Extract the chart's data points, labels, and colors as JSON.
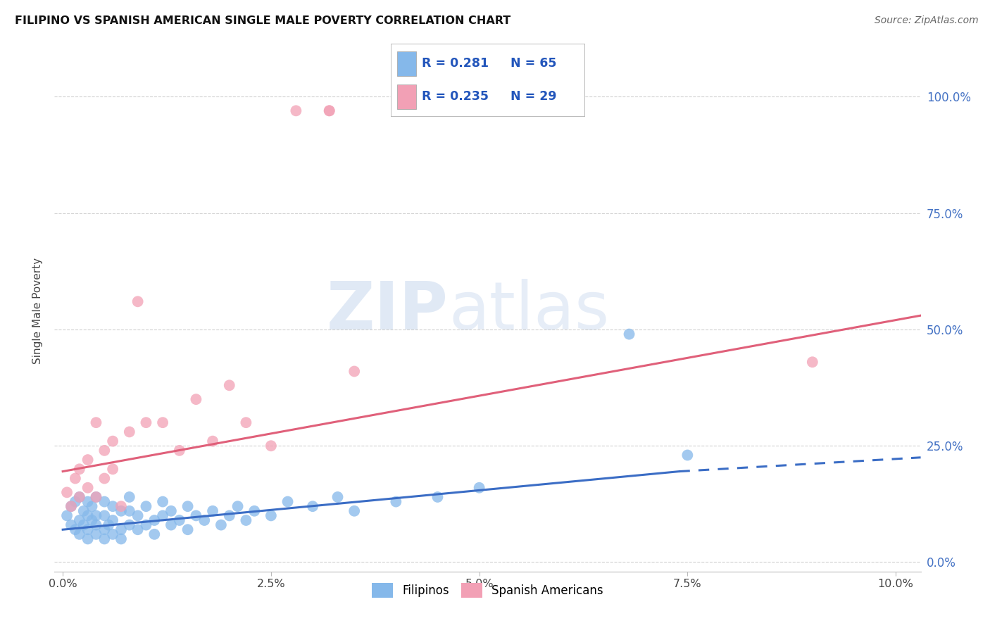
{
  "title": "FILIPINO VS SPANISH AMERICAN SINGLE MALE POVERTY CORRELATION CHART",
  "source": "Source: ZipAtlas.com",
  "xlabel_ticks": [
    "0.0%",
    "2.5%",
    "5.0%",
    "7.5%",
    "10.0%"
  ],
  "xlabel_tick_vals": [
    0.0,
    0.025,
    0.05,
    0.075,
    0.1
  ],
  "ylabel": "Single Male Poverty",
  "ylabel_ticks": [
    "0.0%",
    "25.0%",
    "50.0%",
    "75.0%",
    "100.0%"
  ],
  "ylabel_tick_vals": [
    0.0,
    0.25,
    0.5,
    0.75,
    1.0
  ],
  "xlim": [
    -0.001,
    0.103
  ],
  "ylim": [
    -0.02,
    1.1
  ],
  "legend_blue_r": "R = 0.281",
  "legend_blue_n": "N = 65",
  "legend_pink_r": "R = 0.235",
  "legend_pink_n": "N = 29",
  "blue_color": "#85B8EA",
  "pink_color": "#F2A0B5",
  "blue_line_color": "#3B6DC5",
  "pink_line_color": "#E0607A",
  "filipinos_x": [
    0.0005,
    0.001,
    0.001,
    0.0015,
    0.0015,
    0.002,
    0.002,
    0.002,
    0.0025,
    0.0025,
    0.003,
    0.003,
    0.003,
    0.003,
    0.0035,
    0.0035,
    0.004,
    0.004,
    0.004,
    0.004,
    0.005,
    0.005,
    0.005,
    0.005,
    0.0055,
    0.006,
    0.006,
    0.006,
    0.007,
    0.007,
    0.007,
    0.008,
    0.008,
    0.008,
    0.009,
    0.009,
    0.01,
    0.01,
    0.011,
    0.011,
    0.012,
    0.012,
    0.013,
    0.013,
    0.014,
    0.015,
    0.015,
    0.016,
    0.017,
    0.018,
    0.019,
    0.02,
    0.021,
    0.022,
    0.023,
    0.025,
    0.027,
    0.03,
    0.033,
    0.035,
    0.04,
    0.045,
    0.05,
    0.068,
    0.075
  ],
  "filipinos_y": [
    0.1,
    0.08,
    0.12,
    0.07,
    0.13,
    0.06,
    0.09,
    0.14,
    0.08,
    0.11,
    0.07,
    0.1,
    0.13,
    0.05,
    0.09,
    0.12,
    0.06,
    0.1,
    0.14,
    0.08,
    0.07,
    0.1,
    0.13,
    0.05,
    0.08,
    0.06,
    0.09,
    0.12,
    0.07,
    0.11,
    0.05,
    0.08,
    0.11,
    0.14,
    0.07,
    0.1,
    0.08,
    0.12,
    0.06,
    0.09,
    0.1,
    0.13,
    0.08,
    0.11,
    0.09,
    0.07,
    0.12,
    0.1,
    0.09,
    0.11,
    0.08,
    0.1,
    0.12,
    0.09,
    0.11,
    0.1,
    0.13,
    0.12,
    0.14,
    0.11,
    0.13,
    0.14,
    0.16,
    0.49,
    0.23
  ],
  "spanish_x": [
    0.0005,
    0.001,
    0.0015,
    0.002,
    0.002,
    0.003,
    0.003,
    0.004,
    0.004,
    0.005,
    0.005,
    0.006,
    0.006,
    0.007,
    0.008,
    0.009,
    0.01,
    0.012,
    0.014,
    0.016,
    0.018,
    0.02,
    0.022,
    0.025,
    0.028,
    0.032,
    0.032,
    0.035,
    0.09
  ],
  "spanish_y": [
    0.15,
    0.12,
    0.18,
    0.14,
    0.2,
    0.16,
    0.22,
    0.14,
    0.3,
    0.18,
    0.24,
    0.2,
    0.26,
    0.12,
    0.28,
    0.56,
    0.3,
    0.3,
    0.24,
    0.35,
    0.26,
    0.38,
    0.3,
    0.25,
    0.97,
    0.97,
    0.97,
    0.41,
    0.43
  ],
  "blue_trend_x0": 0.0,
  "blue_trend_x1": 0.074,
  "blue_trend_x_dash0": 0.074,
  "blue_trend_x_dash1": 0.103,
  "blue_trend_y0": 0.07,
  "blue_trend_y1": 0.195,
  "blue_trend_y_dash1": 0.225,
  "pink_trend_x0": 0.0,
  "pink_trend_x1": 0.103,
  "pink_trend_y0": 0.195,
  "pink_trend_y1": 0.53
}
